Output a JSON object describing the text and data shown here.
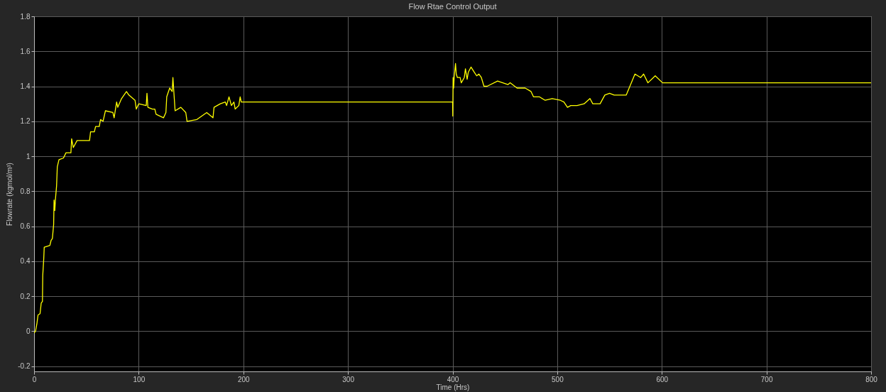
{
  "chart_data": {
    "type": "line",
    "title": "Flow Rtae Control Output",
    "xlabel": "Time (Hrs)",
    "ylabel": "Flowrate (kgmol/m³)",
    "x": [
      0,
      1.4,
      2.8,
      3.8,
      5.7,
      6.1,
      6.8,
      8.0,
      8.3,
      9.2,
      9.7,
      15.1,
      16.3,
      17.5,
      18.7,
      19.1,
      19.8,
      20.5,
      21.5,
      22.2,
      23.8,
      28.1,
      30.5,
      35.2,
      35.9,
      37.5,
      41.1,
      44.6,
      53,
      54,
      57.6,
      58.8,
      62.3,
      63.5,
      65.9,
      68.2,
      75.3,
      76.5,
      78.9,
      80,
      83.6,
      88.3,
      90.6,
      96.5,
      97.7,
      100,
      107.2,
      107.9,
      108.8,
      113,
      115.4,
      116.6,
      123.7,
      126,
      126.8,
      129.6,
      132,
      132.7,
      133.9,
      134.8,
      140.3,
      145,
      146.2,
      155.6,
      165,
      171,
      172,
      178,
      182.8,
      184,
      186.3,
      188.6,
      191,
      192.2,
      195.7,
      197,
      198,
      200,
      400,
      400.2,
      400.5,
      401,
      401.5,
      402.8,
      403.5,
      404.6,
      407.2,
      408.3,
      411.2,
      412.3,
      413.9,
      415,
      417.6,
      420.8,
      423,
      425.2,
      427.5,
      430,
      433,
      443,
      453,
      455,
      461.6,
      469.4,
      475,
      477.3,
      482.9,
      488.5,
      495.2,
      503,
      506.4,
      509.8,
      513,
      519,
      525.7,
      531.3,
      534,
      541,
      545.5,
      550,
      554.4,
      566,
      571.5,
      574.3,
      579.8,
      582.6,
      586.7,
      593.7,
      600.7,
      800
    ],
    "series": [
      {
        "color": "#ffff00",
        "values": [
          -0.01,
          0,
          0.047,
          0.093,
          0.1,
          0.12,
          0.16,
          0.17,
          0.32,
          0.41,
          0.48,
          0.49,
          0.52,
          0.53,
          0.61,
          0.75,
          0.69,
          0.76,
          0.83,
          0.94,
          0.98,
          0.99,
          1.02,
          1.02,
          1.1,
          1.05,
          1.09,
          1.09,
          1.09,
          1.14,
          1.14,
          1.17,
          1.17,
          1.21,
          1.2,
          1.26,
          1.25,
          1.22,
          1.31,
          1.28,
          1.33,
          1.37,
          1.35,
          1.32,
          1.27,
          1.3,
          1.29,
          1.36,
          1.28,
          1.27,
          1.27,
          1.24,
          1.22,
          1.25,
          1.34,
          1.39,
          1.37,
          1.45,
          1.34,
          1.26,
          1.28,
          1.25,
          1.2,
          1.21,
          1.25,
          1.22,
          1.28,
          1.3,
          1.31,
          1.29,
          1.34,
          1.29,
          1.31,
          1.27,
          1.29,
          1.34,
          1.31,
          1.31,
          1.31,
          1.23,
          1.45,
          1.39,
          1.45,
          1.53,
          1.47,
          1.45,
          1.45,
          1.42,
          1.45,
          1.5,
          1.44,
          1.48,
          1.51,
          1.48,
          1.46,
          1.47,
          1.45,
          1.4,
          1.4,
          1.43,
          1.41,
          1.42,
          1.39,
          1.39,
          1.37,
          1.34,
          1.34,
          1.32,
          1.33,
          1.32,
          1.31,
          1.28,
          1.29,
          1.29,
          1.3,
          1.33,
          1.3,
          1.3,
          1.35,
          1.36,
          1.35,
          1.35,
          1.43,
          1.47,
          1.45,
          1.47,
          1.42,
          1.46,
          1.42,
          1.42
        ]
      }
    ],
    "xlim": [
      0,
      800
    ],
    "ylim": [
      -0.23,
      1.8
    ],
    "xticks": [
      0,
      100,
      200,
      300,
      400,
      500,
      600,
      700,
      800
    ],
    "yticks": [
      -0.2,
      0,
      0.2,
      0.4,
      0.6,
      0.8,
      1,
      1.2,
      1.4,
      1.6,
      1.8
    ],
    "grid": true,
    "marker": "none",
    "line_style": "solid"
  }
}
